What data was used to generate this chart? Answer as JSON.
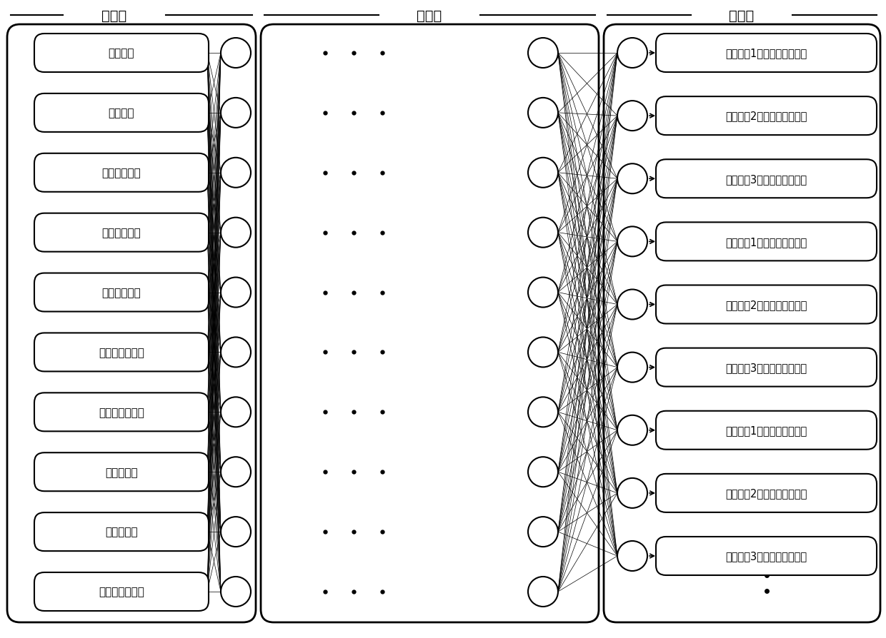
{
  "input_labels": [
    "上游水文",
    "下游水文",
    "事故发生位置",
    "污染物泄漏量",
    "污染物溶解度",
    "污染物降解系数",
    "污染物蒸发常数",
    "污染物密度",
    "污染物粘度",
    "污染物表面张力"
  ],
  "output_labels": [
    "敏感目标1的污染物峰值浓度",
    "敏感目标2的污染物峰值浓度",
    "敏感目标3的污染物峰值浓度",
    "敏感目标1的污染物到达时刻",
    "敏感目标2的污染物到达时刻",
    "敏感目标3的污染物到达时刻",
    "敏感目标1的超阈值持续时间",
    "敏感目标2的超阈值持续时间",
    "敏感目标3的超阈值持续时间"
  ],
  "layer_labels": [
    "输入层",
    "隐含层",
    "输出层"
  ],
  "n_input": 10,
  "n_hidden": 10,
  "n_output": 9,
  "bg_color": "#ffffff",
  "font_size": 11,
  "label_font_size": 14,
  "figw": 12.4,
  "figh": 8.95,
  "dpi": 100
}
